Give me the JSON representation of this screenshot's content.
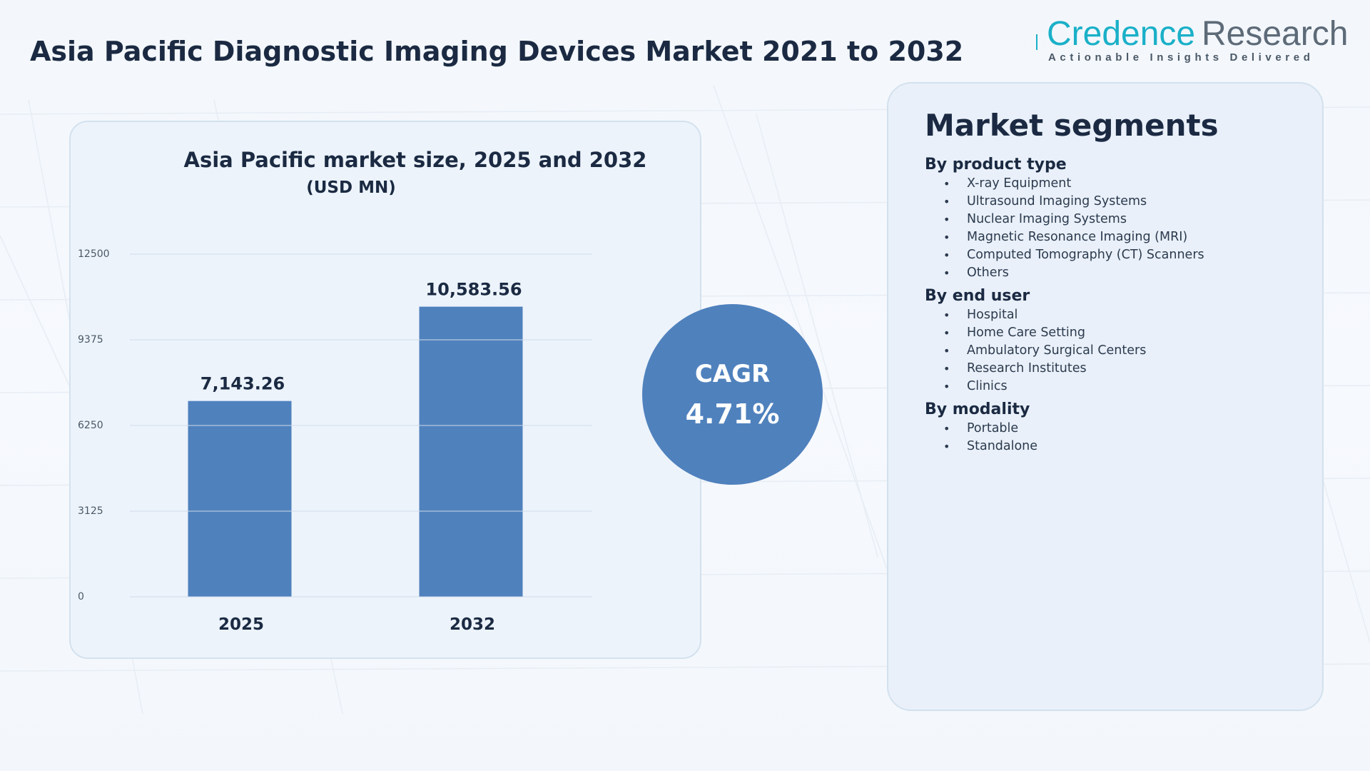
{
  "page_title": "Asia Pacific Diagnostic Imaging Devices Market 2021 to 2032",
  "logo": {
    "word1": "Credence",
    "word2": "Research",
    "tagline": "Actionable Insights Delivered"
  },
  "colors": {
    "bar": "#4f81bd",
    "logo_accent": "#1ab0c8",
    "title_text": "#1b2a42",
    "card_background": "#ecf3fb"
  },
  "chart_data": {
    "type": "bar",
    "title": "Asia Pacific market size, 2025 and 2032",
    "subtitle": "(USD MN)",
    "categories": [
      "2025",
      "2032"
    ],
    "values": [
      7143.26,
      10583.56
    ],
    "value_labels": [
      "7,143.26",
      "10,583.56"
    ],
    "y_ticks": [
      0,
      3125,
      6250,
      9375,
      12500
    ],
    "ylim": [
      0,
      12500
    ],
    "xlabel": "",
    "ylabel": "",
    "grid": true,
    "legend": "none"
  },
  "cagr": {
    "label": "CAGR",
    "value": "4.71%"
  },
  "segments": {
    "title": "Market segments",
    "groups": [
      {
        "title": "By product type",
        "items": [
          "X-ray Equipment",
          "Ultrasound Imaging Systems",
          "Nuclear Imaging Systems",
          "Magnetic Resonance Imaging (MRI)",
          "Computed Tomography (CT) Scanners",
          "Others"
        ]
      },
      {
        "title": "By end user",
        "items": [
          "Hospital",
          "Home Care Setting",
          "Ambulatory Surgical Centers",
          "Research Institutes",
          "Clinics"
        ]
      },
      {
        "title": "By modality",
        "items": [
          "Portable",
          "Standalone"
        ]
      }
    ]
  }
}
